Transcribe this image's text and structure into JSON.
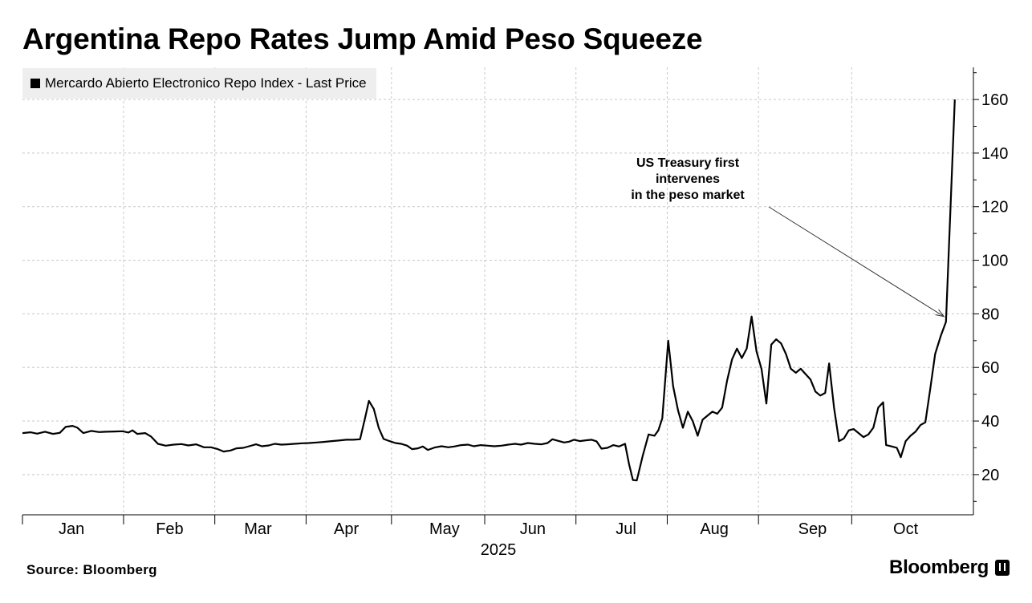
{
  "title": "Argentina Repo Rates Jump Amid Peso Squeeze",
  "legend_label": "Mercardo Abierto Electronico Repo Index - Last Price",
  "source": "Source: Bloomberg",
  "brand": "Bloomberg",
  "chart_data": {
    "type": "line",
    "title": "Argentina Repo Rates Jump Amid Peso Squeeze",
    "xlabel": "2025",
    "ylabel": "",
    "ylim": [
      5,
      172
    ],
    "xlim": [
      0,
      9.08
    ],
    "y_ticks": [
      20,
      40,
      60,
      80,
      100,
      120,
      140,
      160
    ],
    "x_tick_labels": [
      {
        "label": "Jan",
        "x": 0.5
      },
      {
        "label": "Feb",
        "x": 1.5
      },
      {
        "label": "Mar",
        "x": 2.4
      },
      {
        "label": "Apr",
        "x": 3.3
      },
      {
        "label": "May",
        "x": 4.3
      },
      {
        "label": "Jun",
        "x": 5.2
      },
      {
        "label": "Jul",
        "x": 6.15
      },
      {
        "label": "Aug",
        "x": 7.05
      },
      {
        "label": "Sep",
        "x": 8.05
      },
      {
        "label": "Oct",
        "x": 9.0
      }
    ],
    "month_boundaries": [
      0,
      1.03,
      1.96,
      2.89,
      3.76,
      4.71,
      5.64,
      6.57,
      7.5,
      8.45
    ],
    "grid": true,
    "legend_position": "top-left",
    "series": [
      {
        "name": "Mercardo Abierto Electronico Repo Index - Last Price",
        "color": "#000000",
        "points": [
          [
            0.0,
            35.5
          ],
          [
            0.08,
            35.8
          ],
          [
            0.15,
            35.3
          ],
          [
            0.23,
            36.0
          ],
          [
            0.31,
            35.2
          ],
          [
            0.38,
            35.6
          ],
          [
            0.44,
            37.8
          ],
          [
            0.51,
            38.2
          ],
          [
            0.56,
            37.5
          ],
          [
            0.62,
            35.5
          ],
          [
            0.7,
            36.3
          ],
          [
            0.78,
            35.9
          ],
          [
            0.86,
            36.0
          ],
          [
            0.94,
            36.1
          ],
          [
            1.02,
            36.2
          ],
          [
            1.08,
            35.7
          ],
          [
            1.12,
            36.5
          ],
          [
            1.17,
            35.2
          ],
          [
            1.25,
            35.5
          ],
          [
            1.31,
            34.2
          ],
          [
            1.38,
            31.5
          ],
          [
            1.46,
            30.8
          ],
          [
            1.54,
            31.2
          ],
          [
            1.62,
            31.4
          ],
          [
            1.69,
            30.9
          ],
          [
            1.77,
            31.3
          ],
          [
            1.85,
            30.2
          ],
          [
            1.92,
            30.2
          ],
          [
            1.99,
            29.5
          ],
          [
            2.05,
            28.6
          ],
          [
            2.12,
            29.0
          ],
          [
            2.18,
            29.8
          ],
          [
            2.25,
            30.0
          ],
          [
            2.31,
            30.6
          ],
          [
            2.38,
            31.3
          ],
          [
            2.44,
            30.6
          ],
          [
            2.51,
            30.9
          ],
          [
            2.57,
            31.5
          ],
          [
            2.64,
            31.2
          ],
          [
            2.7,
            31.3
          ],
          [
            2.77,
            31.5
          ],
          [
            2.85,
            31.7
          ],
          [
            2.92,
            31.8
          ],
          [
            3.0,
            32.0
          ],
          [
            3.07,
            32.2
          ],
          [
            3.15,
            32.5
          ],
          [
            3.22,
            32.7
          ],
          [
            3.3,
            33.0
          ],
          [
            3.37,
            33.0
          ],
          [
            3.44,
            33.2
          ],
          [
            3.49,
            41.0
          ],
          [
            3.53,
            47.5
          ],
          [
            3.58,
            44.5
          ],
          [
            3.63,
            37.5
          ],
          [
            3.68,
            33.3
          ],
          [
            3.74,
            32.5
          ],
          [
            3.8,
            31.8
          ],
          [
            3.86,
            31.5
          ],
          [
            3.92,
            30.8
          ],
          [
            3.97,
            29.5
          ],
          [
            4.03,
            29.8
          ],
          [
            4.08,
            30.5
          ],
          [
            4.13,
            29.2
          ],
          [
            4.2,
            30.1
          ],
          [
            4.27,
            30.6
          ],
          [
            4.34,
            30.2
          ],
          [
            4.4,
            30.5
          ],
          [
            4.47,
            31.0
          ],
          [
            4.54,
            31.2
          ],
          [
            4.6,
            30.6
          ],
          [
            4.67,
            31.0
          ],
          [
            4.74,
            30.8
          ],
          [
            4.81,
            30.6
          ],
          [
            4.88,
            30.8
          ],
          [
            4.95,
            31.2
          ],
          [
            5.02,
            31.5
          ],
          [
            5.08,
            31.2
          ],
          [
            5.15,
            31.8
          ],
          [
            5.22,
            31.5
          ],
          [
            5.29,
            31.3
          ],
          [
            5.35,
            31.8
          ],
          [
            5.4,
            33.2
          ],
          [
            5.46,
            32.6
          ],
          [
            5.52,
            32.0
          ],
          [
            5.57,
            32.3
          ],
          [
            5.62,
            33.0
          ],
          [
            5.68,
            32.5
          ],
          [
            5.74,
            32.8
          ],
          [
            5.8,
            33.0
          ],
          [
            5.85,
            32.4
          ],
          [
            5.9,
            29.7
          ],
          [
            5.96,
            30.0
          ],
          [
            6.02,
            31.0
          ],
          [
            6.08,
            30.5
          ],
          [
            6.14,
            31.5
          ],
          [
            6.18,
            24.0
          ],
          [
            6.22,
            18.0
          ],
          [
            6.26,
            17.8
          ],
          [
            6.32,
            27.0
          ],
          [
            6.38,
            35.0
          ],
          [
            6.44,
            34.5
          ],
          [
            6.48,
            36.5
          ],
          [
            6.52,
            41.0
          ],
          [
            6.58,
            70.0
          ],
          [
            6.63,
            53.0
          ],
          [
            6.68,
            44.0
          ],
          [
            6.73,
            37.5
          ],
          [
            6.78,
            43.5
          ],
          [
            6.83,
            40.0
          ],
          [
            6.88,
            34.5
          ],
          [
            6.93,
            40.5
          ],
          [
            6.98,
            42.0
          ],
          [
            7.03,
            43.5
          ],
          [
            7.08,
            42.7
          ],
          [
            7.13,
            45.0
          ],
          [
            7.18,
            55.0
          ],
          [
            7.23,
            63.0
          ],
          [
            7.28,
            67.0
          ],
          [
            7.33,
            63.5
          ],
          [
            7.38,
            67.0
          ],
          [
            7.43,
            79.0
          ],
          [
            7.48,
            66.0
          ],
          [
            7.53,
            59.5
          ],
          [
            7.58,
            46.5
          ],
          [
            7.63,
            68.5
          ],
          [
            7.68,
            70.5
          ],
          [
            7.73,
            69.0
          ],
          [
            7.78,
            65.0
          ],
          [
            7.83,
            59.5
          ],
          [
            7.88,
            58.0
          ],
          [
            7.93,
            59.5
          ],
          [
            7.98,
            57.5
          ],
          [
            8.03,
            55.5
          ],
          [
            8.08,
            51.0
          ],
          [
            8.13,
            49.5
          ],
          [
            8.18,
            50.5
          ],
          [
            8.22,
            61.5
          ],
          [
            8.27,
            45.0
          ],
          [
            8.32,
            32.5
          ],
          [
            8.37,
            33.5
          ],
          [
            8.42,
            36.5
          ],
          [
            8.47,
            37.0
          ],
          [
            8.52,
            35.5
          ],
          [
            8.57,
            34.0
          ],
          [
            8.62,
            35.0
          ],
          [
            8.67,
            37.5
          ],
          [
            8.72,
            45.0
          ],
          [
            8.77,
            47.0
          ],
          [
            8.8,
            31.0
          ],
          [
            8.86,
            30.5
          ],
          [
            8.91,
            30.0
          ],
          [
            8.95,
            26.5
          ],
          [
            9.0,
            32.5
          ],
          [
            9.05,
            34.5
          ],
          [
            9.1,
            36.0
          ],
          [
            9.15,
            38.5
          ],
          [
            9.2,
            39.5
          ],
          [
            9.25,
            52.0
          ],
          [
            9.3,
            65.0
          ],
          [
            9.36,
            72.0
          ],
          [
            9.41,
            77.0
          ],
          [
            9.5,
            160.0
          ]
        ]
      }
    ],
    "annotations": [
      {
        "text_lines": [
          "US Treasury first",
          "intervenes",
          "in the peso market"
        ],
        "arrow_to": [
          9.39,
          79.0
        ]
      }
    ]
  }
}
